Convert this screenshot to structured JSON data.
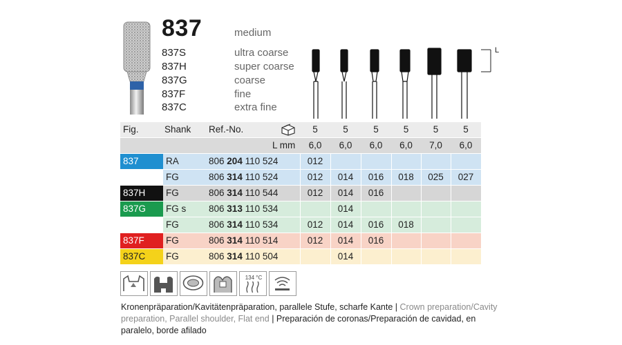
{
  "product": {
    "model": "837",
    "grit": "medium",
    "variants": [
      {
        "code": "837S",
        "grit": "ultra coarse"
      },
      {
        "code": "837H",
        "grit": "super coarse"
      },
      {
        "code": "837G",
        "grit": "coarse"
      },
      {
        "code": "837F",
        "grit": "fine"
      },
      {
        "code": "837C",
        "grit": "extra fine"
      }
    ],
    "length_marker": "L"
  },
  "table": {
    "headers": {
      "fig": "Fig.",
      "shank": "Shank",
      "ref": "Ref.-No.",
      "l_mm": "L mm"
    },
    "pack_counts": [
      "5",
      "5",
      "5",
      "5",
      "5",
      "5"
    ],
    "lengths": [
      "6,0",
      "6,0",
      "6,0",
      "6,0",
      "7,0",
      "6,0"
    ],
    "rows": [
      {
        "fig": "837",
        "fig_color": "#1f8fd0",
        "fig_text_color": "#ffffff",
        "bg": "#cfe3f3",
        "shank": "RA",
        "ref_pre": "806",
        "ref_bold": "204",
        "ref_post": "110 524",
        "sizes": [
          "012",
          "",
          "",
          "",
          "",
          ""
        ]
      },
      {
        "fig": "",
        "fig_color": "",
        "fig_text_color": "",
        "bg": "#cfe3f3",
        "shank": "FG",
        "ref_pre": "806",
        "ref_bold": "314",
        "ref_post": "110 524",
        "sizes": [
          "012",
          "014",
          "016",
          "018",
          "025",
          "027"
        ]
      },
      {
        "fig": "837H",
        "fig_color": "#111111",
        "fig_text_color": "#ffffff",
        "bg": "#d6d6d6",
        "shank": "FG",
        "ref_pre": "806",
        "ref_bold": "314",
        "ref_post": "110 544",
        "sizes": [
          "012",
          "014",
          "016",
          "",
          "",
          ""
        ]
      },
      {
        "fig": "837G",
        "fig_color": "#1a9a4e",
        "fig_text_color": "#ffffff",
        "bg": "#d6ecdc",
        "shank": "FG s",
        "ref_pre": "806",
        "ref_bold": "313",
        "ref_post": "110 534",
        "sizes": [
          "",
          "014",
          "",
          "",
          "",
          ""
        ]
      },
      {
        "fig": "",
        "fig_color": "",
        "fig_text_color": "",
        "bg": "#d6ecdc",
        "shank": "FG",
        "ref_pre": "806",
        "ref_bold": "314",
        "ref_post": "110 534",
        "sizes": [
          "012",
          "014",
          "016",
          "018",
          "",
          ""
        ]
      },
      {
        "fig": "837F",
        "fig_color": "#e02020",
        "fig_text_color": "#ffffff",
        "bg": "#f8d3c6",
        "shank": "FG",
        "ref_pre": "806",
        "ref_bold": "314",
        "ref_post": "110 514",
        "sizes": [
          "012",
          "014",
          "016",
          "",
          "",
          ""
        ]
      },
      {
        "fig": "837C",
        "fig_color": "#f4d21a",
        "fig_text_color": "#222222",
        "bg": "#fcefcf",
        "shank": "FG",
        "ref_pre": "806",
        "ref_bold": "314",
        "ref_post": "110 504",
        "sizes": [
          "",
          "014",
          "",
          "",
          "",
          ""
        ]
      }
    ]
  },
  "icons": [
    {
      "name": "crown-prep-icon"
    },
    {
      "name": "cavity-prep-icon"
    },
    {
      "name": "veneer-prep-icon"
    },
    {
      "name": "tooth-prep-icon"
    },
    {
      "name": "sterilizable-icon",
      "label": "134 °C"
    },
    {
      "name": "thermo-disinfector-icon"
    }
  ],
  "description": {
    "de": "Kronenpräparation/Kavitätenpräparation, parallele Stufe, scharfe Kante",
    "sep1": " | ",
    "en": "Crown preparation/Cavity preparation, Parallel shoulder, Flat end",
    "sep2": " | ",
    "es": "Preparación de coronas/Preparación de cavidad, en paralelo, borde afilado"
  },
  "colors": {
    "header_bg": "#ececec",
    "lmm_bg": "#dadada",
    "icon_border": "#9a9a9a"
  }
}
